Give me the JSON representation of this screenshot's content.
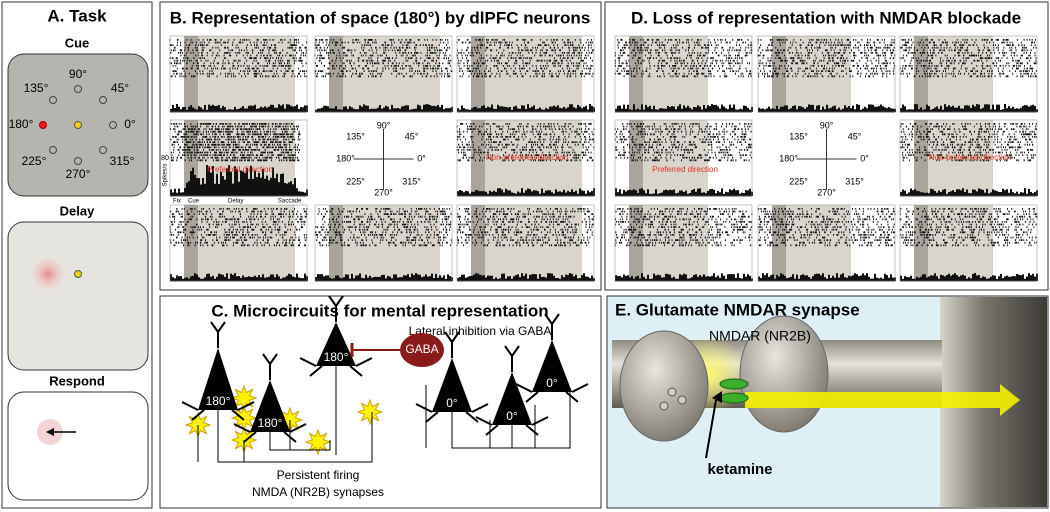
{
  "panel_a": {
    "title": "A. Task",
    "cue": "Cue",
    "directions": [
      "90°",
      "135°",
      "45°",
      "180°",
      "0°",
      "225°",
      "315°",
      "270°"
    ],
    "delay": "Delay",
    "respond": "Respond"
  },
  "panel_b": {
    "title": "B. Representation of space (180°) by dlPFC neurons",
    "directions": [
      "90°",
      "135°",
      "45°",
      "180°",
      "0°",
      "225°",
      "315°",
      "270°"
    ],
    "preferred": "Preferred direction",
    "nonpreferred": "Non-preferred direction",
    "y_axis_label": "Spikes/s",
    "y_max": 80,
    "epochs": [
      "Fix",
      "Cue",
      "Delay",
      "Saccade"
    ]
  },
  "panel_d": {
    "title": "D. Loss of representation with NMDAR blockade",
    "directions": [
      "90°",
      "135°",
      "45°",
      "180°",
      "0°",
      "225°",
      "315°",
      "270°"
    ],
    "preferred": "Preferred direction",
    "nonpreferred": "Non-preferred direction"
  },
  "panel_c": {
    "title": "C. Microcircuits for mental representation",
    "inhibition": "Lateral inhibition via GABA",
    "gaba": "GABA",
    "cell_labels": [
      "180°",
      "180°",
      "180°",
      "0°",
      "0°",
      "0°"
    ],
    "caption": [
      "Persistent firing",
      "NMDA (NR2B) synapses"
    ]
  },
  "panel_e": {
    "title": "E. Glutamate NMDAR synapse",
    "receptor": "NMDAR (NR2B)",
    "drug": "ketamine"
  }
}
